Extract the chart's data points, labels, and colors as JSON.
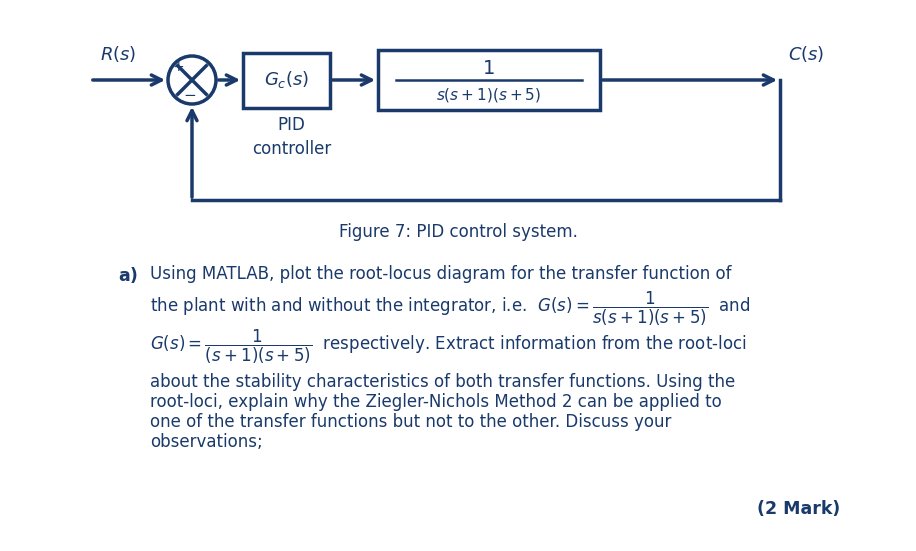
{
  "bg_color": "#ffffff",
  "text_color": "#1a3a6b",
  "fig_width": 9.16,
  "fig_height": 5.51,
  "dpi": 100,
  "diagram": {
    "figure_caption": "Figure 7: PID control system."
  },
  "text_block": {
    "part_a_label": "a)",
    "mark_label": "(2 Mark)"
  }
}
